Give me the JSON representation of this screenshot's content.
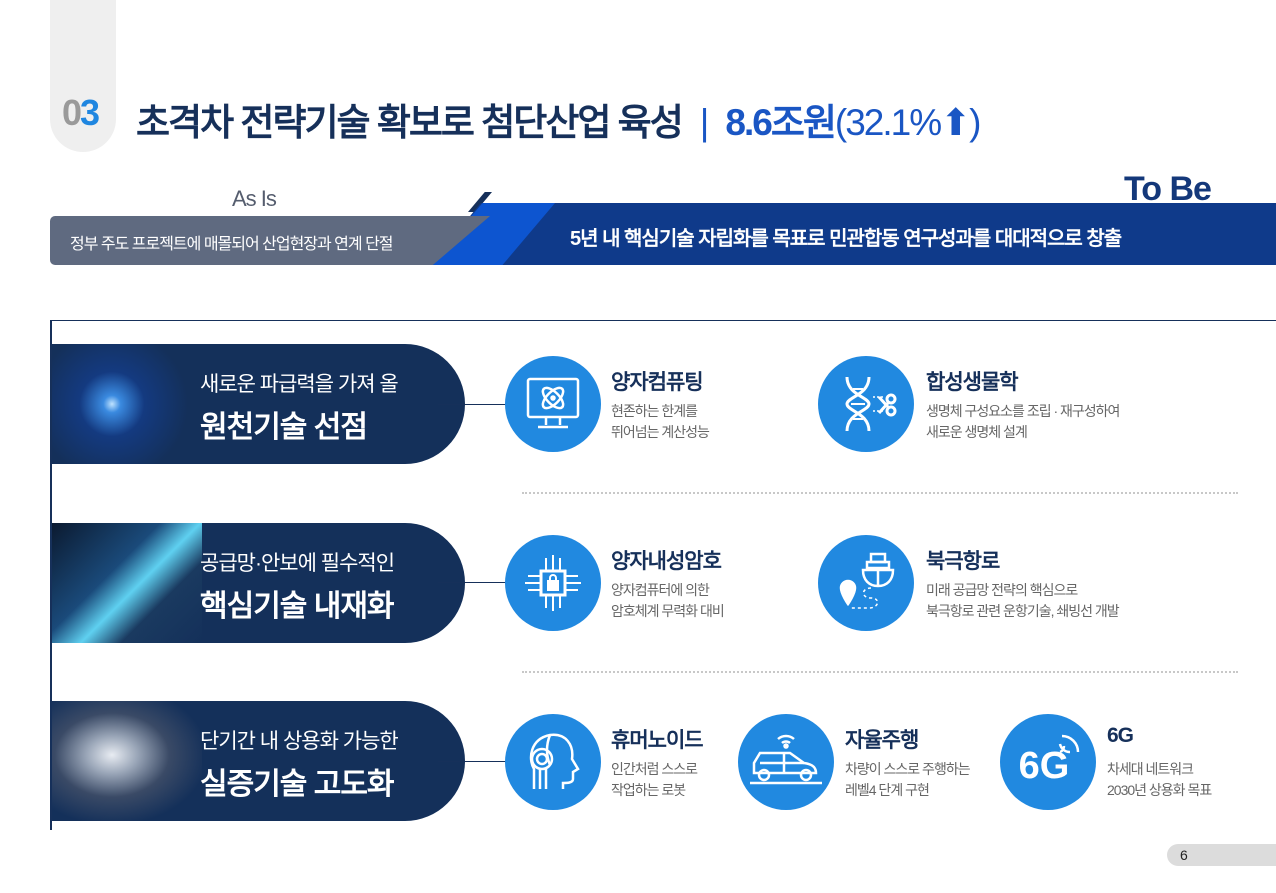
{
  "header": {
    "section_number_gray": "0",
    "section_number_blue": "3",
    "title": "초격차 전략기술 확보로 첨단산업 육성",
    "separator": "|",
    "amount": "8.6조원",
    "percent": "(32.1%⬆)"
  },
  "transition": {
    "as_is_label": "As Is",
    "as_is_text": "정부 주도 프로젝트에 매몰되어 산업현장과 연계 단절",
    "to_be_label": "To Be",
    "to_be_text": "5년 내 핵심기술 자립화를 목표로 민관합동 연구성과를 대대적으로 창출"
  },
  "rows": [
    {
      "line1": "새로운 파급력을 가져 올",
      "line2": "원천기술 선점",
      "items": [
        {
          "icon": "quantum-computer-icon",
          "title": "양자컴퓨팅",
          "desc1": "현존하는 한계를",
          "desc2": "뛰어넘는 계산성능"
        },
        {
          "icon": "dna-scissors-icon",
          "title": "합성생물학",
          "desc1": "생명체 구성요소를 조립 · 재구성하여",
          "desc2": "새로운 생명체 설계"
        }
      ]
    },
    {
      "line1": "공급망·안보에 필수적인",
      "line2": "핵심기술 내재화",
      "items": [
        {
          "icon": "chip-lock-icon",
          "title": "양자내성암호",
          "desc1": "양자컴퓨터에 의한",
          "desc2": "암호체계 무력화 대비"
        },
        {
          "icon": "ship-route-icon",
          "title": "북극항로",
          "desc1": "미래 공급망 전략의 핵심으로",
          "desc2": "북극항로 관련 운항기술, 쇄빙선 개발"
        }
      ]
    },
    {
      "line1": "단기간 내 상용화 가능한",
      "line2": "실증기술 고도화",
      "items": [
        {
          "icon": "humanoid-icon",
          "title": "휴머노이드",
          "desc1": "인간처럼 스스로",
          "desc2": "작업하는 로봇"
        },
        {
          "icon": "autonomous-car-icon",
          "title": "자율주행",
          "desc1": "차량이 스스로 주행하는",
          "desc2": "레벨4 단계 구현"
        },
        {
          "icon": "6g-icon",
          "icon_text": "6G",
          "title": "6G",
          "desc1": "차세대 네트워크",
          "desc2": "2030년 상용화 목표"
        }
      ]
    }
  ],
  "page_number": "6",
  "colors": {
    "navy": "#16305a",
    "blue": "#2189e0",
    "accent": "#1a56c4",
    "gray_bar": "#5f6a80"
  }
}
